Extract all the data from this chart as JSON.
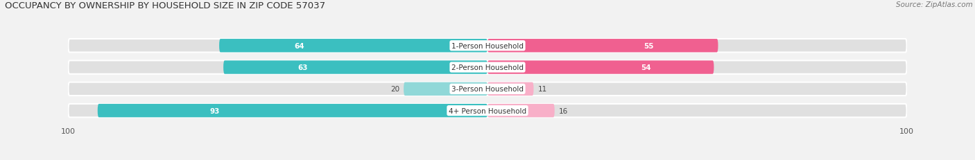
{
  "title": "OCCUPANCY BY OWNERSHIP BY HOUSEHOLD SIZE IN ZIP CODE 57037",
  "source": "Source: ZipAtlas.com",
  "categories": [
    "1-Person Household",
    "2-Person Household",
    "3-Person Household",
    "4+ Person Household"
  ],
  "owner_values": [
    64,
    63,
    20,
    93
  ],
  "renter_values": [
    55,
    54,
    11,
    16
  ],
  "owner_color_dark": "#3bbfc0",
  "owner_color_light": "#90d8d8",
  "renter_color_dark": "#f06090",
  "renter_color_light": "#f8afc8",
  "owner_threshold": 30,
  "renter_threshold": 30,
  "axis_max": 100,
  "background_color": "#f2f2f2",
  "bar_bg_color": "#e0e0e0",
  "title_fontsize": 9.5,
  "source_fontsize": 7.5,
  "label_fontsize": 7.5,
  "value_fontsize": 7.5,
  "bar_height": 0.62,
  "figsize": [
    14.06,
    2.32
  ],
  "dpi": 100
}
